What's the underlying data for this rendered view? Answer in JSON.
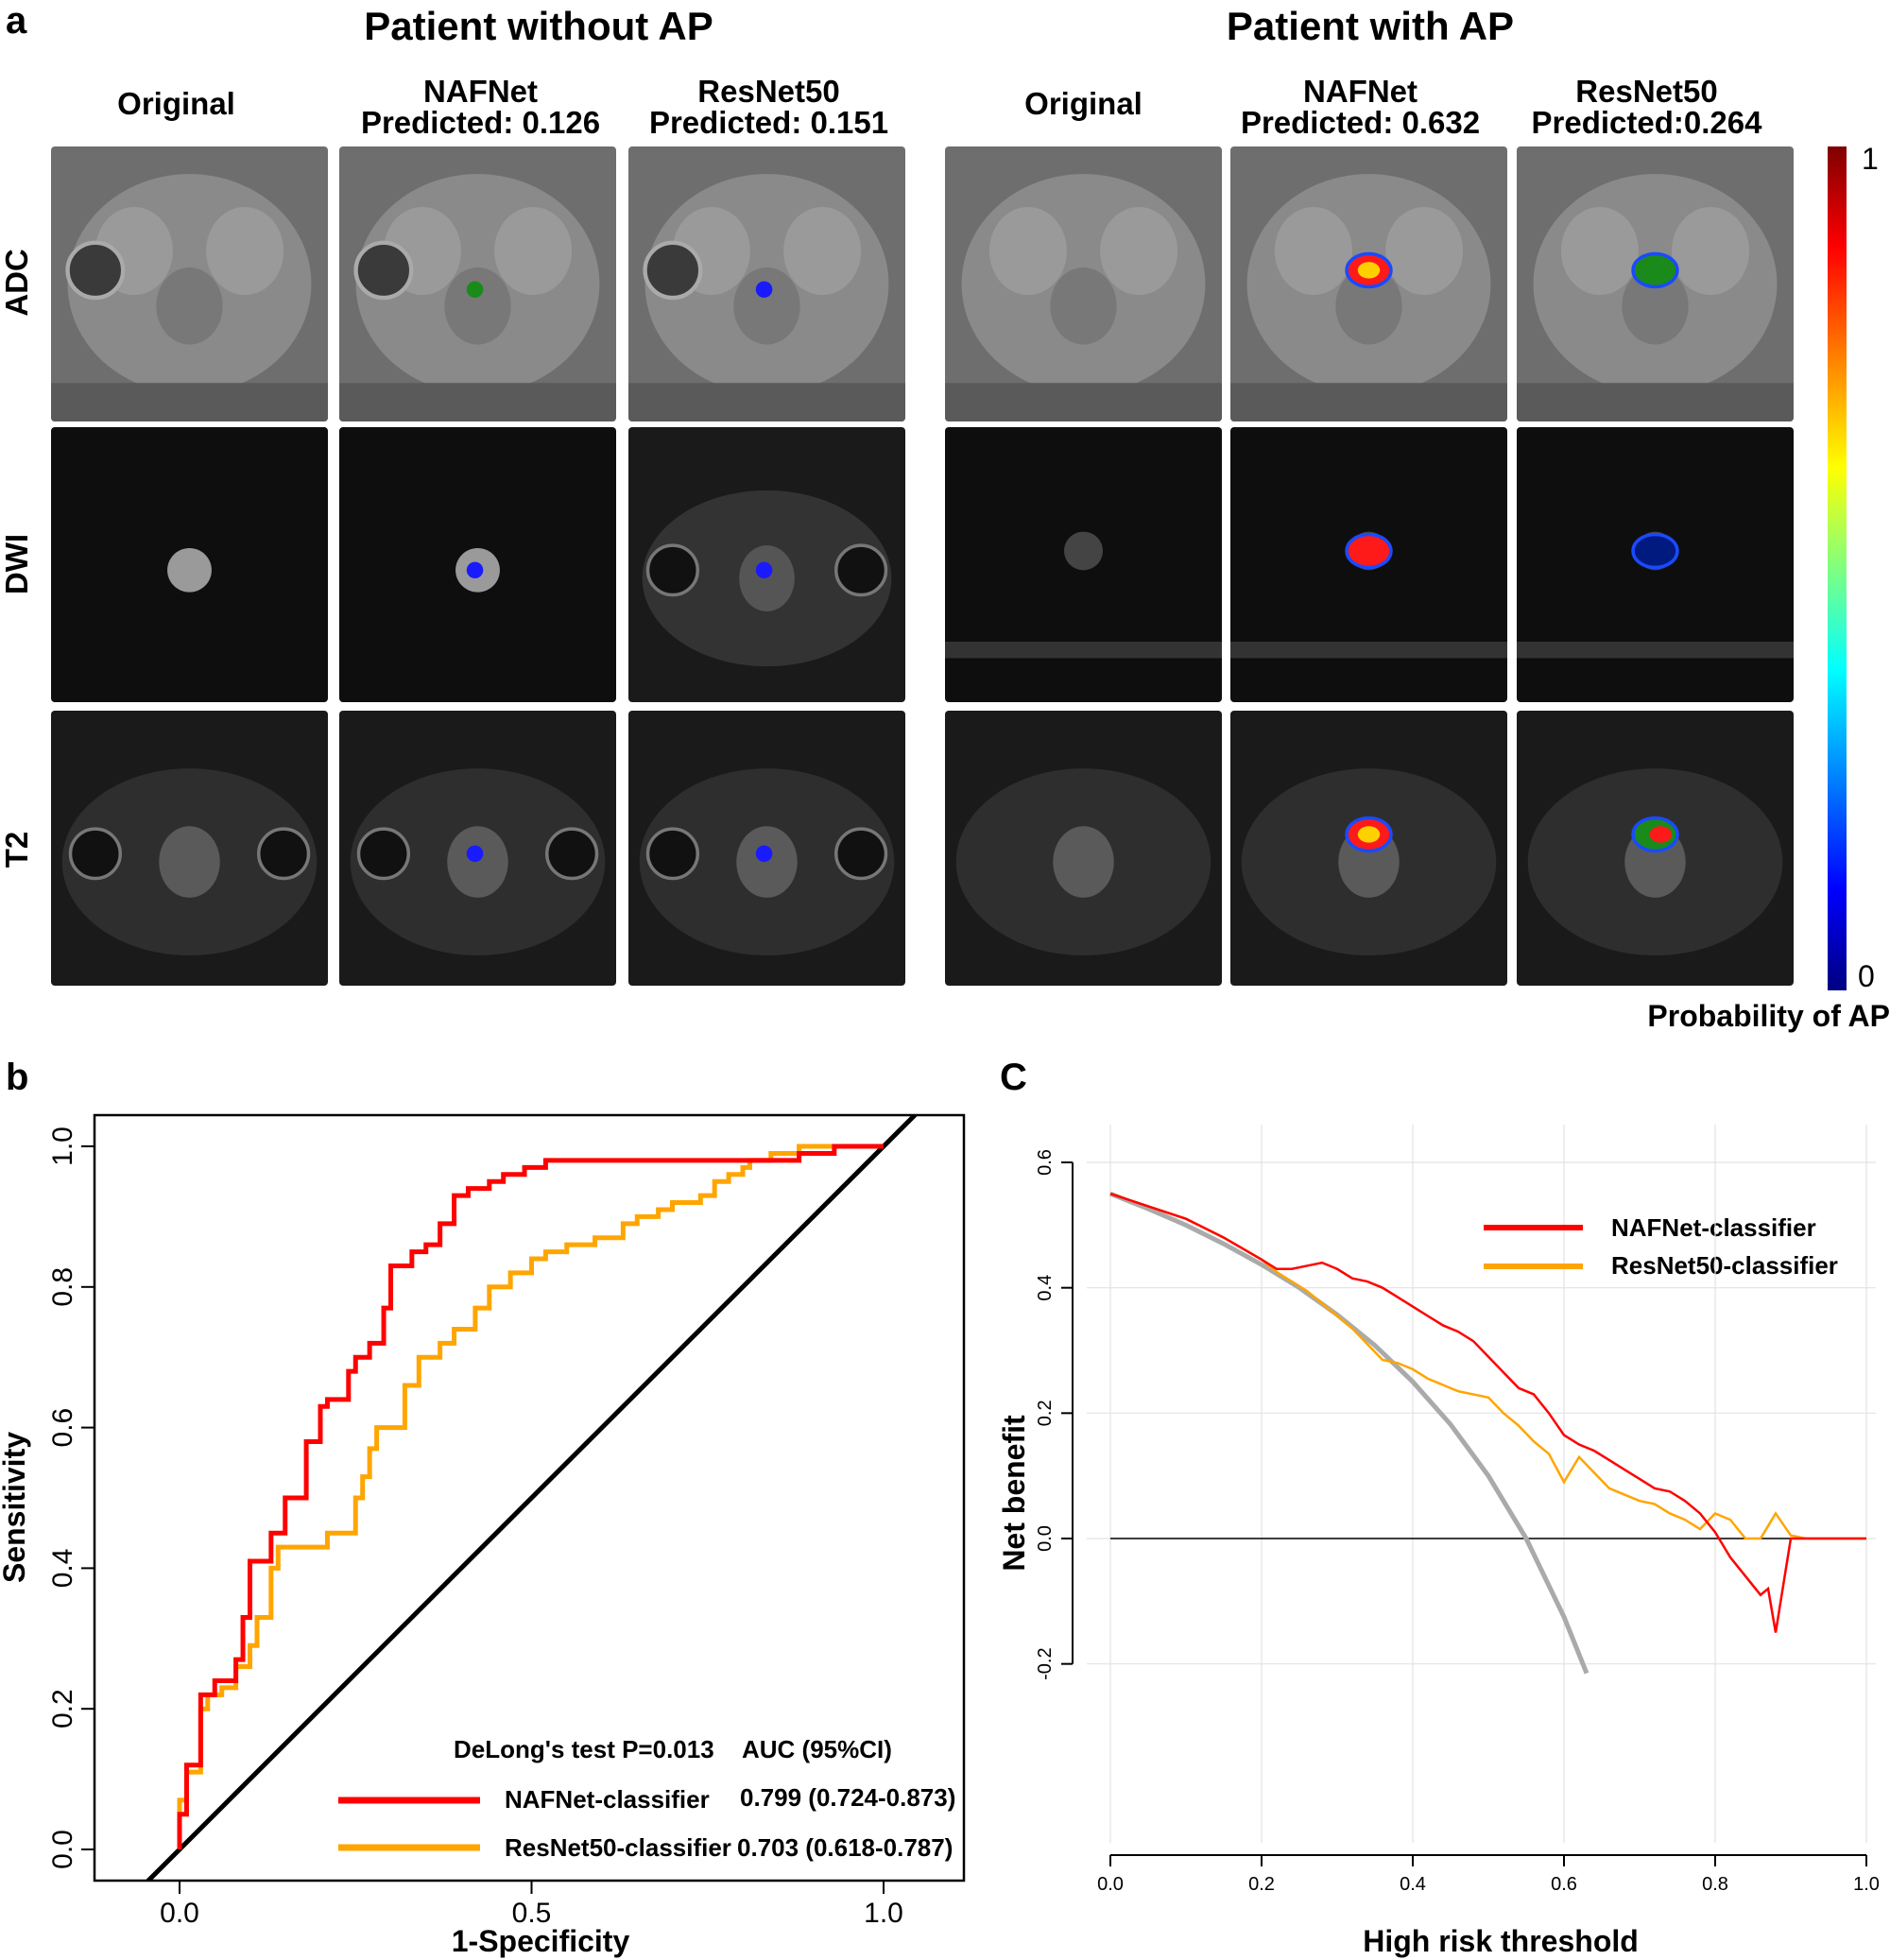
{
  "panel_a": {
    "letter": "a",
    "groups": [
      {
        "title": "Patient without AP",
        "columns": [
          {
            "line1": "Original",
            "line2": ""
          },
          {
            "line1": "NAFNet",
            "line2": "Predicted: 0.126"
          },
          {
            "line1": "ResNet50",
            "line2": "Predicted: 0.151"
          }
        ]
      },
      {
        "title": "Patient with AP",
        "columns": [
          {
            "line1": "Original",
            "line2": ""
          },
          {
            "line1": "NAFNet",
            "line2": "Predicted: 0.632"
          },
          {
            "line1": "ResNet50",
            "line2": "Predicted:0.264"
          }
        ]
      }
    ],
    "rows": [
      "ADC",
      "DWI",
      "T2"
    ],
    "colorbar": {
      "max_label": "1",
      "min_label": "0",
      "title": "Probability of AP"
    }
  },
  "panel_b": {
    "letter": "b",
    "chart_data": {
      "type": "line",
      "xlabel": "1-Specificity",
      "ylabel": "Sensitivity",
      "xlim": [
        -0.05,
        1.1
      ],
      "ylim": [
        0,
        1.0
      ],
      "xticks": [
        "0.0",
        "0.5",
        "1.0"
      ],
      "yticks": [
        "0.0",
        "0.2",
        "0.4",
        "0.6",
        "0.8",
        "1.0"
      ],
      "annotation": "DeLong's test P=0.013",
      "legend_header": "AUC (95%CI)",
      "legend_position": "bottom-right",
      "series": [
        {
          "name": "NAFNet-classifier",
          "auc": "0.799 (0.724-0.873)",
          "color": "#ff0000",
          "x": [
            0.0,
            0.0,
            0.01,
            0.01,
            0.03,
            0.03,
            0.05,
            0.05,
            0.08,
            0.08,
            0.09,
            0.09,
            0.1,
            0.1,
            0.13,
            0.13,
            0.15,
            0.15,
            0.18,
            0.18,
            0.2,
            0.2,
            0.21,
            0.21,
            0.24,
            0.24,
            0.25,
            0.25,
            0.27,
            0.27,
            0.29,
            0.29,
            0.3,
            0.3,
            0.33,
            0.33,
            0.35,
            0.35,
            0.37,
            0.37,
            0.39,
            0.39,
            0.41,
            0.41,
            0.44,
            0.44,
            0.46,
            0.46,
            0.49,
            0.49,
            0.5,
            0.5,
            0.52,
            0.52,
            0.55,
            0.55,
            0.8,
            0.8,
            0.88,
            0.88,
            0.93,
            0.93,
            0.95,
            0.95,
            1.0
          ],
          "y": [
            0.0,
            0.05,
            0.05,
            0.12,
            0.12,
            0.22,
            0.22,
            0.24,
            0.24,
            0.27,
            0.27,
            0.33,
            0.33,
            0.41,
            0.41,
            0.45,
            0.45,
            0.5,
            0.5,
            0.58,
            0.58,
            0.63,
            0.63,
            0.64,
            0.64,
            0.68,
            0.68,
            0.7,
            0.7,
            0.72,
            0.72,
            0.77,
            0.77,
            0.83,
            0.83,
            0.85,
            0.85,
            0.86,
            0.86,
            0.89,
            0.89,
            0.93,
            0.93,
            0.94,
            0.94,
            0.95,
            0.95,
            0.96,
            0.96,
            0.97,
            0.97,
            0.97,
            0.97,
            0.98,
            0.98,
            0.98,
            0.98,
            0.98,
            0.98,
            0.99,
            0.99,
            1.0,
            1.0,
            1.0,
            1.0
          ]
        },
        {
          "name": "ResNet50-classifier",
          "auc": "0.703 (0.618-0.787)",
          "color": "#ffa500",
          "x": [
            0.0,
            0.0,
            0.01,
            0.01,
            0.03,
            0.03,
            0.04,
            0.04,
            0.06,
            0.06,
            0.08,
            0.08,
            0.1,
            0.1,
            0.11,
            0.11,
            0.13,
            0.13,
            0.14,
            0.14,
            0.21,
            0.21,
            0.25,
            0.25,
            0.26,
            0.26,
            0.27,
            0.27,
            0.28,
            0.28,
            0.32,
            0.32,
            0.34,
            0.34,
            0.37,
            0.37,
            0.39,
            0.39,
            0.42,
            0.42,
            0.44,
            0.44,
            0.47,
            0.47,
            0.5,
            0.5,
            0.52,
            0.52,
            0.55,
            0.55,
            0.59,
            0.59,
            0.63,
            0.63,
            0.65,
            0.65,
            0.68,
            0.68,
            0.7,
            0.7,
            0.74,
            0.74,
            0.76,
            0.76,
            0.78,
            0.78,
            0.8,
            0.8,
            0.81,
            0.81,
            0.84,
            0.84,
            0.88,
            0.88,
            0.95,
            0.95,
            1.0
          ],
          "y": [
            0.0,
            0.07,
            0.07,
            0.11,
            0.11,
            0.2,
            0.2,
            0.22,
            0.22,
            0.23,
            0.23,
            0.26,
            0.26,
            0.29,
            0.29,
            0.33,
            0.33,
            0.4,
            0.4,
            0.43,
            0.43,
            0.45,
            0.45,
            0.5,
            0.5,
            0.53,
            0.53,
            0.57,
            0.57,
            0.6,
            0.6,
            0.66,
            0.66,
            0.7,
            0.7,
            0.72,
            0.72,
            0.74,
            0.74,
            0.77,
            0.77,
            0.8,
            0.8,
            0.82,
            0.82,
            0.84,
            0.84,
            0.85,
            0.85,
            0.86,
            0.86,
            0.87,
            0.87,
            0.89,
            0.89,
            0.9,
            0.9,
            0.91,
            0.91,
            0.92,
            0.92,
            0.93,
            0.93,
            0.95,
            0.95,
            0.96,
            0.96,
            0.97,
            0.97,
            0.98,
            0.98,
            0.99,
            0.99,
            1.0,
            1.0,
            1.0,
            1.0
          ]
        },
        {
          "name": "",
          "color": "#000000",
          "x": [
            -0.05,
            1.05
          ],
          "y": [
            -0.05,
            1.05
          ]
        }
      ]
    }
  },
  "panel_c": {
    "letter": "C",
    "chart_data": {
      "type": "line",
      "xlabel": "High risk threshold",
      "ylabel": "Net benefit",
      "xlim": [
        0,
        1.0
      ],
      "ylim": [
        -0.2,
        0.6
      ],
      "xticks": [
        "0.0",
        "0.2",
        "0.4",
        "0.6",
        "0.8",
        "1.0"
      ],
      "yticks": [
        "-0.2",
        "0.0",
        "0.2",
        "0.4",
        "0.6"
      ],
      "grid": true,
      "legend_position": "top-right",
      "series": [
        {
          "name": "NAFNet-classifier",
          "color": "#ff0000",
          "x": [
            0.0,
            0.05,
            0.1,
            0.15,
            0.2,
            0.22,
            0.24,
            0.26,
            0.28,
            0.3,
            0.32,
            0.34,
            0.36,
            0.38,
            0.4,
            0.42,
            0.44,
            0.46,
            0.48,
            0.5,
            0.52,
            0.54,
            0.56,
            0.58,
            0.6,
            0.62,
            0.64,
            0.66,
            0.68,
            0.7,
            0.72,
            0.74,
            0.76,
            0.78,
            0.8,
            0.82,
            0.84,
            0.86,
            0.87,
            0.88,
            0.9,
            0.91,
            0.92,
            0.95,
            1.0
          ],
          "y": [
            0.55,
            0.53,
            0.51,
            0.48,
            0.445,
            0.43,
            0.43,
            0.435,
            0.44,
            0.43,
            0.415,
            0.41,
            0.4,
            0.385,
            0.37,
            0.355,
            0.34,
            0.33,
            0.315,
            0.29,
            0.265,
            0.24,
            0.23,
            0.2,
            0.165,
            0.15,
            0.14,
            0.125,
            0.11,
            0.095,
            0.08,
            0.075,
            0.06,
            0.04,
            0.01,
            -0.03,
            -0.06,
            -0.09,
            -0.08,
            -0.15,
            0.0,
            0.0,
            0.0,
            0.0,
            0.0
          ]
        },
        {
          "name": "ResNet50-classifier",
          "color": "#ffa500",
          "x": [
            0.0,
            0.05,
            0.1,
            0.15,
            0.2,
            0.22,
            0.24,
            0.26,
            0.28,
            0.3,
            0.32,
            0.34,
            0.36,
            0.38,
            0.4,
            0.42,
            0.44,
            0.46,
            0.48,
            0.5,
            0.52,
            0.54,
            0.56,
            0.58,
            0.6,
            0.62,
            0.64,
            0.66,
            0.68,
            0.7,
            0.72,
            0.74,
            0.76,
            0.78,
            0.8,
            0.82,
            0.84,
            0.86,
            0.88,
            0.9,
            0.92,
            0.95,
            1.0
          ],
          "y": [
            0.55,
            0.53,
            0.51,
            0.48,
            0.445,
            0.425,
            0.41,
            0.395,
            0.375,
            0.355,
            0.335,
            0.31,
            0.285,
            0.28,
            0.27,
            0.255,
            0.245,
            0.235,
            0.23,
            0.225,
            0.2,
            0.18,
            0.155,
            0.135,
            0.09,
            0.13,
            0.105,
            0.08,
            0.07,
            0.06,
            0.055,
            0.04,
            0.03,
            0.015,
            0.04,
            0.03,
            0.0,
            0.0,
            0.04,
            0.005,
            0.0,
            0.0,
            0.0
          ]
        },
        {
          "name": "",
          "color": "#aaaaaa",
          "x": [
            0.0,
            0.05,
            0.1,
            0.15,
            0.2,
            0.25,
            0.3,
            0.35,
            0.4,
            0.45,
            0.5,
            0.55,
            0.6,
            0.63
          ],
          "y": [
            0.55,
            0.526,
            0.5,
            0.47,
            0.437,
            0.4,
            0.357,
            0.308,
            0.25,
            0.182,
            0.1,
            0.0,
            -0.125,
            -0.215
          ]
        },
        {
          "name": "",
          "color": "#000000",
          "x": [
            0.0,
            1.0
          ],
          "y": [
            0.0,
            0.0
          ]
        }
      ]
    }
  }
}
